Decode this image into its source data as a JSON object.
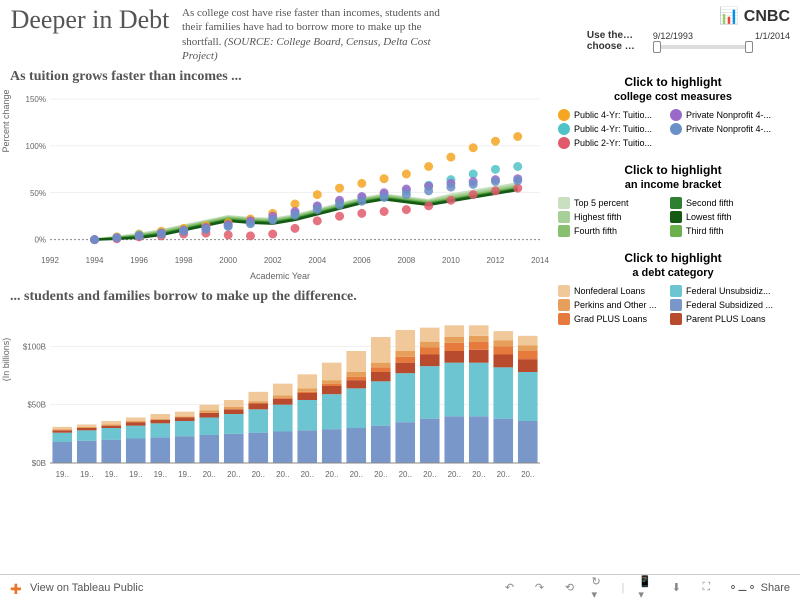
{
  "header": {
    "title": "Deeper in Debt",
    "subtitle": "As college cost have rise faster than incomes, students and their families have had to borrow more to make up the shortfall.",
    "source": "(SOURCE: College Board, Census, Delta Cost Project)",
    "logo": "📊 CNBC",
    "slider_label1": "Use the…",
    "slider_label2": "choose …",
    "date_start": "9/12/1993",
    "date_end": "1/1/2014"
  },
  "chart1": {
    "title": "As tuition grows faster than incomes ...",
    "ylabel": "Percent change",
    "xlabel": "Academic Year",
    "xlim": [
      1992,
      2014
    ],
    "ylim": [
      -10,
      150
    ],
    "yticks": [
      0,
      50,
      100,
      150
    ],
    "ytick_labels": [
      "0%",
      "50%",
      "100%",
      "150%"
    ],
    "xticks": [
      1992,
      1994,
      1996,
      1998,
      2000,
      2002,
      2004,
      2006,
      2008,
      2010,
      2012,
      2014
    ],
    "cost_series": [
      {
        "name": "Public 4-Yr Tuition",
        "color": "#f5a623",
        "values": [
          [
            1994,
            0
          ],
          [
            1995,
            3
          ],
          [
            1996,
            6
          ],
          [
            1997,
            9
          ],
          [
            1998,
            12
          ],
          [
            1999,
            15
          ],
          [
            2000,
            18
          ],
          [
            2001,
            22
          ],
          [
            2002,
            28
          ],
          [
            2003,
            38
          ],
          [
            2004,
            48
          ],
          [
            2005,
            55
          ],
          [
            2006,
            60
          ],
          [
            2007,
            65
          ],
          [
            2008,
            70
          ],
          [
            2009,
            78
          ],
          [
            2010,
            88
          ],
          [
            2011,
            98
          ],
          [
            2012,
            105
          ],
          [
            2013,
            110
          ]
        ]
      },
      {
        "name": "Public 4-Yr Tuition2",
        "color": "#4fc3c7",
        "values": [
          [
            1994,
            0
          ],
          [
            1995,
            2
          ],
          [
            1996,
            5
          ],
          [
            1997,
            7
          ],
          [
            1998,
            10
          ],
          [
            1999,
            12
          ],
          [
            2000,
            15
          ],
          [
            2001,
            18
          ],
          [
            2002,
            22
          ],
          [
            2003,
            28
          ],
          [
            2004,
            35
          ],
          [
            2005,
            40
          ],
          [
            2006,
            45
          ],
          [
            2007,
            48
          ],
          [
            2008,
            52
          ],
          [
            2009,
            58
          ],
          [
            2010,
            64
          ],
          [
            2011,
            70
          ],
          [
            2012,
            75
          ],
          [
            2013,
            78
          ]
        ]
      },
      {
        "name": "Public 2-Yr",
        "color": "#e05a6b",
        "values": [
          [
            1994,
            0
          ],
          [
            1995,
            1
          ],
          [
            1996,
            3
          ],
          [
            1997,
            4
          ],
          [
            1998,
            6
          ],
          [
            1999,
            7
          ],
          [
            2000,
            5
          ],
          [
            2001,
            4
          ],
          [
            2002,
            6
          ],
          [
            2003,
            12
          ],
          [
            2004,
            20
          ],
          [
            2005,
            25
          ],
          [
            2006,
            28
          ],
          [
            2007,
            30
          ],
          [
            2008,
            32
          ],
          [
            2009,
            36
          ],
          [
            2010,
            42
          ],
          [
            2011,
            48
          ],
          [
            2012,
            52
          ],
          [
            2013,
            55
          ]
        ]
      },
      {
        "name": "Private Nonprofit A",
        "color": "#9968c8",
        "values": [
          [
            1994,
            0
          ],
          [
            1995,
            2
          ],
          [
            1996,
            4
          ],
          [
            1997,
            7
          ],
          [
            1998,
            10
          ],
          [
            1999,
            13
          ],
          [
            2000,
            16
          ],
          [
            2001,
            20
          ],
          [
            2002,
            25
          ],
          [
            2003,
            30
          ],
          [
            2004,
            36
          ],
          [
            2005,
            42
          ],
          [
            2006,
            46
          ],
          [
            2007,
            50
          ],
          [
            2008,
            54
          ],
          [
            2009,
            57
          ],
          [
            2010,
            60
          ],
          [
            2011,
            62
          ],
          [
            2012,
            64
          ],
          [
            2013,
            65
          ]
        ]
      },
      {
        "name": "Private Nonprofit B",
        "color": "#6b8fc7",
        "values": [
          [
            1994,
            0
          ],
          [
            1995,
            2
          ],
          [
            1996,
            4
          ],
          [
            1997,
            6
          ],
          [
            1998,
            9
          ],
          [
            1999,
            11
          ],
          [
            2000,
            14
          ],
          [
            2001,
            17
          ],
          [
            2002,
            21
          ],
          [
            2003,
            26
          ],
          [
            2004,
            32
          ],
          [
            2005,
            37
          ],
          [
            2006,
            41
          ],
          [
            2007,
            45
          ],
          [
            2008,
            48
          ],
          [
            2009,
            52
          ],
          [
            2010,
            56
          ],
          [
            2011,
            59
          ],
          [
            2012,
            62
          ],
          [
            2013,
            63
          ]
        ]
      }
    ],
    "income_series": [
      {
        "name": "Top 5 percent",
        "color": "#c8e0c0",
        "values": [
          [
            1994,
            0
          ],
          [
            1995,
            3
          ],
          [
            1996,
            6
          ],
          [
            1997,
            10
          ],
          [
            1998,
            15
          ],
          [
            1999,
            20
          ],
          [
            2000,
            25
          ],
          [
            2001,
            23
          ],
          [
            2002,
            22
          ],
          [
            2003,
            26
          ],
          [
            2004,
            32
          ],
          [
            2005,
            38
          ],
          [
            2006,
            44
          ],
          [
            2007,
            48
          ],
          [
            2008,
            45
          ],
          [
            2009,
            42
          ],
          [
            2010,
            48
          ],
          [
            2011,
            52
          ],
          [
            2012,
            56
          ],
          [
            2013,
            60
          ]
        ]
      },
      {
        "name": "Highest fifth",
        "color": "#a6d098",
        "values": [
          [
            1994,
            0
          ],
          [
            1995,
            2
          ],
          [
            1996,
            5
          ],
          [
            1997,
            9
          ],
          [
            1998,
            14
          ],
          [
            1999,
            19
          ],
          [
            2000,
            24
          ],
          [
            2001,
            22
          ],
          [
            2002,
            21
          ],
          [
            2003,
            25
          ],
          [
            2004,
            31
          ],
          [
            2005,
            37
          ],
          [
            2006,
            43
          ],
          [
            2007,
            47
          ],
          [
            2008,
            44
          ],
          [
            2009,
            41
          ],
          [
            2010,
            46
          ],
          [
            2011,
            50
          ],
          [
            2012,
            54
          ],
          [
            2013,
            58
          ]
        ]
      },
      {
        "name": "Fourth fifth",
        "color": "#88c070",
        "values": [
          [
            1994,
            0
          ],
          [
            1995,
            2
          ],
          [
            1996,
            4
          ],
          [
            1997,
            8
          ],
          [
            1998,
            13
          ],
          [
            1999,
            18
          ],
          [
            2000,
            23
          ],
          [
            2001,
            21
          ],
          [
            2002,
            20
          ],
          [
            2003,
            24
          ],
          [
            2004,
            30
          ],
          [
            2005,
            36
          ],
          [
            2006,
            42
          ],
          [
            2007,
            46
          ],
          [
            2008,
            43
          ],
          [
            2009,
            40
          ],
          [
            2010,
            44
          ],
          [
            2011,
            48
          ],
          [
            2012,
            52
          ],
          [
            2013,
            56
          ]
        ]
      },
      {
        "name": "Third fifth",
        "color": "#6ab04c",
        "values": [
          [
            1994,
            0
          ],
          [
            1995,
            2
          ],
          [
            1996,
            4
          ],
          [
            1997,
            7
          ],
          [
            1998,
            12
          ],
          [
            1999,
            17
          ],
          [
            2000,
            22
          ],
          [
            2001,
            20
          ],
          [
            2002,
            19
          ],
          [
            2003,
            23
          ],
          [
            2004,
            29
          ],
          [
            2005,
            35
          ],
          [
            2006,
            41
          ],
          [
            2007,
            45
          ],
          [
            2008,
            42
          ],
          [
            2009,
            39
          ],
          [
            2010,
            43
          ],
          [
            2011,
            47
          ],
          [
            2012,
            51
          ],
          [
            2013,
            55
          ]
        ]
      },
      {
        "name": "Second fifth",
        "color": "#2d8030",
        "values": [
          [
            1994,
            0
          ],
          [
            1995,
            1
          ],
          [
            1996,
            3
          ],
          [
            1997,
            6
          ],
          [
            1998,
            11
          ],
          [
            1999,
            16
          ],
          [
            2000,
            21
          ],
          [
            2001,
            19
          ],
          [
            2002,
            18
          ],
          [
            2003,
            22
          ],
          [
            2004,
            28
          ],
          [
            2005,
            34
          ],
          [
            2006,
            40
          ],
          [
            2007,
            44
          ],
          [
            2008,
            41
          ],
          [
            2009,
            38
          ],
          [
            2010,
            42
          ],
          [
            2011,
            46
          ],
          [
            2012,
            50
          ],
          [
            2013,
            54
          ]
        ]
      },
      {
        "name": "Lowest fifth",
        "color": "#145a14",
        "values": [
          [
            1994,
            0
          ],
          [
            1995,
            1
          ],
          [
            1996,
            2
          ],
          [
            1997,
            5
          ],
          [
            1998,
            10
          ],
          [
            1999,
            15
          ],
          [
            2000,
            20
          ],
          [
            2001,
            18
          ],
          [
            2002,
            17
          ],
          [
            2003,
            21
          ],
          [
            2004,
            27
          ],
          [
            2005,
            33
          ],
          [
            2006,
            39
          ],
          [
            2007,
            43
          ],
          [
            2008,
            40
          ],
          [
            2009,
            37
          ],
          [
            2010,
            41
          ],
          [
            2011,
            45
          ],
          [
            2012,
            49
          ],
          [
            2013,
            53
          ]
        ]
      }
    ]
  },
  "chart2": {
    "title": "... students and families borrow to make up the difference.",
    "ylabel": "(In billions)",
    "ylim": [
      0,
      120
    ],
    "yticks": [
      0,
      50,
      100
    ],
    "ytick_labels": [
      "$0B",
      "$50B",
      "$100B"
    ],
    "years": [
      "19..",
      "19..",
      "19..",
      "19..",
      "19..",
      "19..",
      "20..",
      "20..",
      "20..",
      "20..",
      "20..",
      "20..",
      "20..",
      "20..",
      "20..",
      "20..",
      "20..",
      "20..",
      "20..",
      "20.."
    ],
    "stacks": [
      {
        "name": "Federal Subsidized",
        "color": "#7a97c9"
      },
      {
        "name": "Federal Unsubsidized",
        "color": "#6cc5d0"
      },
      {
        "name": "Parent PLUS",
        "color": "#b84a2e"
      },
      {
        "name": "Grad PLUS",
        "color": "#e67a3c"
      },
      {
        "name": "Perkins/Other",
        "color": "#e6a05c"
      },
      {
        "name": "Nonfederal",
        "color": "#f0c89a"
      }
    ],
    "data": [
      [
        18,
        8,
        2,
        0,
        1,
        2
      ],
      [
        19,
        9,
        2,
        0,
        1,
        2
      ],
      [
        20,
        10,
        2,
        0,
        1,
        3
      ],
      [
        21,
        11,
        3,
        0,
        1,
        3
      ],
      [
        22,
        12,
        3,
        0,
        1,
        4
      ],
      [
        23,
        13,
        3,
        0,
        1,
        4
      ],
      [
        24,
        15,
        4,
        0,
        2,
        5
      ],
      [
        25,
        17,
        4,
        0,
        2,
        6
      ],
      [
        26,
        20,
        5,
        0,
        2,
        8
      ],
      [
        27,
        23,
        5,
        1,
        2,
        10
      ],
      [
        28,
        26,
        6,
        1,
        3,
        12
      ],
      [
        29,
        30,
        7,
        2,
        3,
        15
      ],
      [
        30,
        34,
        7,
        3,
        4,
        18
      ],
      [
        32,
        38,
        8,
        4,
        4,
        22
      ],
      [
        35,
        42,
        9,
        5,
        5,
        18
      ],
      [
        38,
        45,
        10,
        6,
        5,
        12
      ],
      [
        40,
        46,
        10,
        7,
        5,
        10
      ],
      [
        40,
        46,
        11,
        7,
        5,
        9
      ],
      [
        38,
        44,
        11,
        7,
        5,
        8
      ],
      [
        36,
        42,
        11,
        7,
        5,
        8
      ]
    ]
  },
  "legends": {
    "cost": {
      "title": "Click to highlight",
      "subtitle": "college cost measures",
      "items": [
        {
          "label": "Public 4-Yr: Tuitio...",
          "color": "#f5a623",
          "shape": "circle"
        },
        {
          "label": "Private Nonprofit 4-...",
          "color": "#9968c8",
          "shape": "circle"
        },
        {
          "label": "Public 4-Yr: Tuitio...",
          "color": "#4fc3c7",
          "shape": "circle"
        },
        {
          "label": "Private Nonprofit 4-...",
          "color": "#6b8fc7",
          "shape": "circle"
        },
        {
          "label": "Public 2-Yr: Tuitio...",
          "color": "#e05a6b",
          "shape": "circle"
        }
      ]
    },
    "income": {
      "title": "Click to highlight",
      "subtitle": "an income bracket",
      "items": [
        {
          "label": "Top 5 percent",
          "color": "#c8e0c0"
        },
        {
          "label": "Second fifth",
          "color": "#2d8030"
        },
        {
          "label": "Highest fifth",
          "color": "#a6d098"
        },
        {
          "label": "Lowest fifth",
          "color": "#145a14"
        },
        {
          "label": "Fourth fifth",
          "color": "#88c070"
        },
        {
          "label": "Third fifth",
          "color": "#6ab04c"
        }
      ]
    },
    "debt": {
      "title": "Click to highlight",
      "subtitle": "a debt category",
      "items": [
        {
          "label": "Nonfederal Loans",
          "color": "#f0c89a"
        },
        {
          "label": "Federal Unsubsidiz...",
          "color": "#6cc5d0"
        },
        {
          "label": "Perkins and Other ...",
          "color": "#e6a05c"
        },
        {
          "label": "Federal Subsidized ...",
          "color": "#7a97c9"
        },
        {
          "label": "Grad PLUS Loans",
          "color": "#e67a3c"
        },
        {
          "label": "Parent PLUS Loans",
          "color": "#b84a2e"
        }
      ]
    }
  },
  "footer": {
    "view_text": "View on Tableau Public",
    "share_text": "Share"
  }
}
